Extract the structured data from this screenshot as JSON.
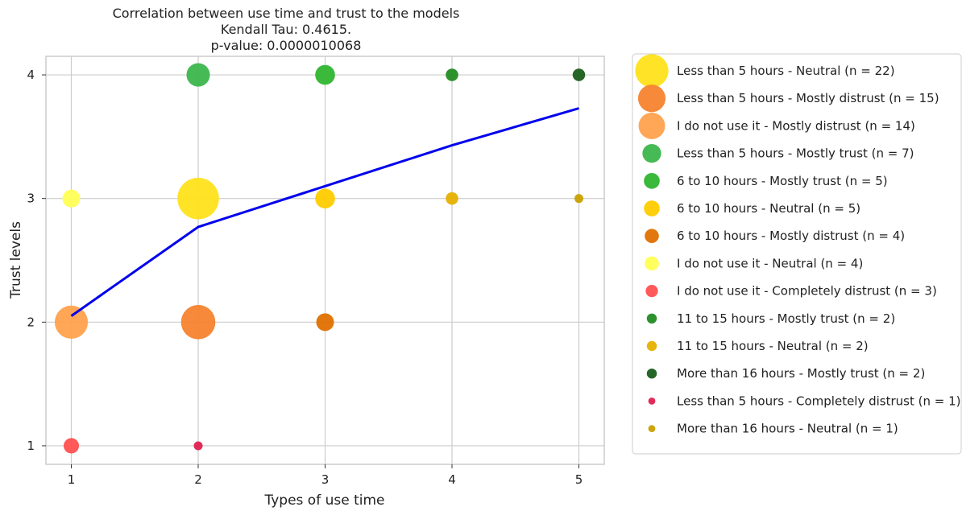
{
  "chart_data": {
    "type": "scatter",
    "title": [
      "Correlation between use time and trust to the models",
      "Kendall Tau: 0.4615.",
      "p-value: 0.0000010068"
    ],
    "xlabel": "Types of use time",
    "ylabel": "Trust levels",
    "xlim": [
      0.8,
      5.2
    ],
    "ylim": [
      0.85,
      4.15
    ],
    "xticks": [
      "1",
      "2",
      "3",
      "4",
      "5"
    ],
    "yticks": [
      "1",
      "2",
      "3",
      "4"
    ],
    "grid": true,
    "legend_position": "outside-right",
    "bubbles": [
      {
        "x": 1,
        "y": 3,
        "n": 4,
        "color": "#ffff55"
      },
      {
        "x": 1,
        "y": 2,
        "n": 14,
        "color": "#ffa24d"
      },
      {
        "x": 1,
        "y": 1,
        "n": 3,
        "color": "#ff5050"
      },
      {
        "x": 2,
        "y": 4,
        "n": 7,
        "color": "#3cb64c"
      },
      {
        "x": 2,
        "y": 3,
        "n": 22,
        "color": "#ffe21a"
      },
      {
        "x": 2,
        "y": 2,
        "n": 15,
        "color": "#f5832f"
      },
      {
        "x": 2,
        "y": 1,
        "n": 1,
        "color": "#e0204f"
      },
      {
        "x": 3,
        "y": 4,
        "n": 5,
        "color": "#2fb52f"
      },
      {
        "x": 3,
        "y": 3,
        "n": 5,
        "color": "#ffcc00"
      },
      {
        "x": 3,
        "y": 2,
        "n": 4,
        "color": "#e07000"
      },
      {
        "x": 4,
        "y": 4,
        "n": 2,
        "color": "#228b22"
      },
      {
        "x": 4,
        "y": 3,
        "n": 2,
        "color": "#e6b000"
      },
      {
        "x": 5,
        "y": 4,
        "n": 2,
        "color": "#1a5e1a"
      },
      {
        "x": 5,
        "y": 3,
        "n": 1,
        "color": "#c9a000"
      }
    ],
    "trend_line": {
      "color": "#0000ee",
      "points": [
        {
          "x": 1,
          "y": 2.05
        },
        {
          "x": 2,
          "y": 2.77
        },
        {
          "x": 3,
          "y": 3.1
        },
        {
          "x": 4,
          "y": 3.43
        },
        {
          "x": 5,
          "y": 3.73
        }
      ]
    },
    "legend": [
      {
        "label": "Less than 5 hours - Neutral (n = 22)",
        "n": 22,
        "color": "#ffe21a"
      },
      {
        "label": "Less than 5 hours - Mostly distrust (n = 15)",
        "n": 15,
        "color": "#f5832f"
      },
      {
        "label": "I do not use it - Mostly distrust (n = 14)",
        "n": 14,
        "color": "#ffa24d"
      },
      {
        "label": "Less than 5 hours - Mostly trust (n = 7)",
        "n": 7,
        "color": "#3cb64c"
      },
      {
        "label": "6 to 10 hours - Mostly trust (n = 5)",
        "n": 5,
        "color": "#2fb52f"
      },
      {
        "label": "6 to 10 hours - Neutral (n = 5)",
        "n": 5,
        "color": "#ffcc00"
      },
      {
        "label": "6 to 10 hours - Mostly distrust (n = 4)",
        "n": 4,
        "color": "#e07000"
      },
      {
        "label": "I do not use it - Neutral (n = 4)",
        "n": 4,
        "color": "#ffff55"
      },
      {
        "label": "I do not use it - Completely distrust (n = 3)",
        "n": 3,
        "color": "#ff5050"
      },
      {
        "label": "11 to 15 hours - Mostly trust (n = 2)",
        "n": 2,
        "color": "#228b22"
      },
      {
        "label": "11 to 15 hours - Neutral (n = 2)",
        "n": 2,
        "color": "#e6b000"
      },
      {
        "label": "More than 16 hours - Mostly trust (n = 2)",
        "n": 2,
        "color": "#1a5e1a"
      },
      {
        "label": "Less than 5 hours - Completely distrust (n = 1)",
        "n": 1,
        "color": "#e0204f"
      },
      {
        "label": "More than 16 hours - Neutral (n = 1)",
        "n": 1,
        "color": "#c9a000"
      }
    ]
  }
}
